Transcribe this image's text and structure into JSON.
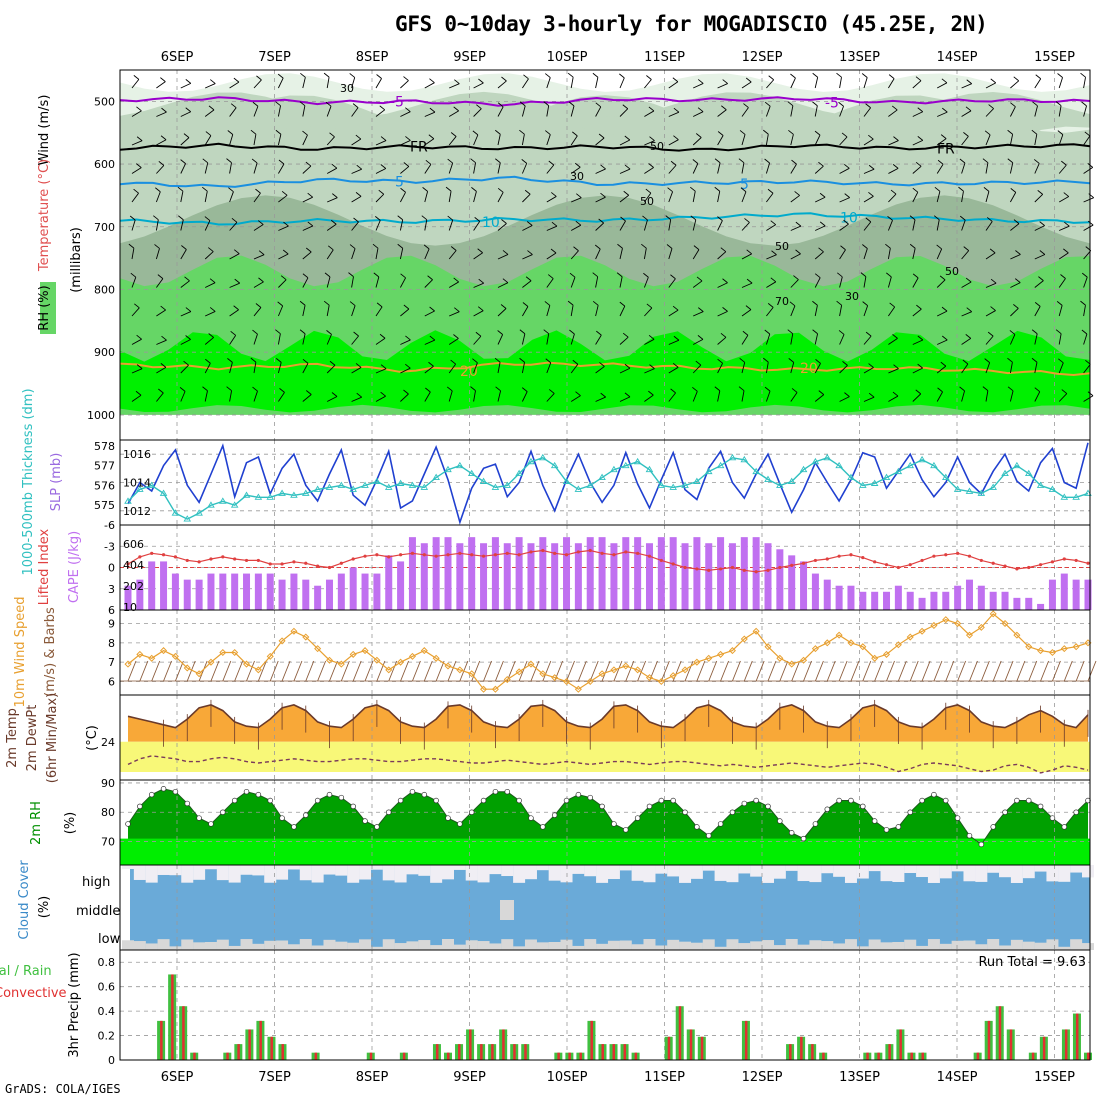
{
  "title": "GFS 0~10day 3-hourly for MOGADISCIO (45.25E, 2N)",
  "credit": "GrADS: COLA/IGES",
  "colors": {
    "rh_light": "#e6f2e6",
    "rh_mid": "#bfd6bf",
    "rh_dark": "#99b899",
    "rh_green": "#66d666",
    "rh_bright": "#00f000",
    "temp_purple": "#9900cc",
    "temp_cyan": "#00aacc",
    "temp_blue": "#1a8fe0",
    "temp_orange": "#e8a030",
    "slp": "#2040d0",
    "thickness": "#30c0c0",
    "cape": "#c070f0",
    "lifted": "#e04040",
    "wind10m": "#e8a030",
    "temp2m": "#f8a838",
    "dew2m": "#f8f878",
    "rh2m_dark": "#00a000",
    "rh2m_bright": "#00ee00",
    "cloud": "#6aaad8",
    "cloud_bg": "#f0eef4",
    "precip_total": "#40c040",
    "precip_conv": "#e03030"
  },
  "chart_data": [
    {
      "type": "heatmap",
      "name": "upper-air",
      "ylabel_parts": [
        "RH (%)",
        "Temperature (°C)",
        "Wind (m/s)"
      ],
      "yaxis_title": "(millibars)",
      "y_ticks": [
        500,
        600,
        700,
        800,
        900,
        1000
      ],
      "ylim": [
        450,
        1040
      ],
      "x_dates": [
        "6SEP",
        "7SEP",
        "8SEP",
        "9SEP",
        "10SEP",
        "11SEP",
        "12SEP",
        "13SEP",
        "14SEP",
        "15SEP"
      ],
      "contour_labels": [
        "-5",
        "FR",
        "5",
        "10",
        "20",
        "30",
        "50",
        "70"
      ],
      "isotherms": [
        {
          "label": "-5",
          "color": "purple",
          "values": [
            498,
            495,
            502,
            500,
            505,
            496,
            498,
            495,
            502,
            498,
            500
          ]
        },
        {
          "label": "FR",
          "color": "black",
          "values": [
            575,
            570,
            576,
            572,
            575,
            572,
            578,
            570,
            575,
            572,
            570
          ]
        },
        {
          "label": "5",
          "color": "blue",
          "values": [
            630,
            636,
            625,
            628,
            622,
            632,
            630,
            628,
            632,
            630,
            628
          ]
        },
        {
          "label": "10",
          "color": "cyan",
          "values": [
            690,
            695,
            690,
            692,
            688,
            690,
            685,
            680,
            685,
            690,
            692
          ]
        },
        {
          "label": "20",
          "color": "orange",
          "values": [
            920,
            925,
            920,
            930,
            918,
            920,
            925,
            928,
            925,
            930,
            935
          ]
        }
      ]
    },
    {
      "type": "line",
      "name": "slp-thickness",
      "ylabel_left": "1000-500mb Thickness (dm)",
      "ylabel_right": "SLP (mb)",
      "left_ticks": [
        575,
        576,
        577,
        578
      ],
      "right_ticks": [
        1012,
        1014,
        1016
      ],
      "ylim_slp": [
        1011,
        1017
      ],
      "slp": [
        1012.5,
        1014.0,
        1013.4,
        1015.2,
        1016.3,
        1013.8,
        1012.6,
        1014.6,
        1016.6,
        1013.0,
        1015.4,
        1015.8,
        1013.2,
        1015.0,
        1016.0,
        1013.8,
        1012.7,
        1014.6,
        1016.3,
        1013.1,
        1012.4,
        1014.2,
        1016.2,
        1012.2,
        1012.7,
        1014.6,
        1016.5,
        1014.2,
        1011.2,
        1013.6,
        1015.0,
        1015.3,
        1013.0,
        1014.0,
        1016.2,
        1013.8,
        1012.0,
        1014.2,
        1016.0,
        1014.0,
        1012.6,
        1013.8,
        1016.1,
        1013.9,
        1012.2,
        1014.2,
        1016.1,
        1013.5,
        1012.8,
        1015.0,
        1016.2,
        1014.0,
        1012.9,
        1014.6,
        1016.0,
        1013.9,
        1011.9,
        1013.5,
        1015.4,
        1014.0,
        1012.7,
        1014.2,
        1016.1,
        1015.8,
        1013.6,
        1014.8,
        1016.0,
        1014.2,
        1013.0,
        1014.0,
        1015.8,
        1014.0,
        1013.2,
        1014.8,
        1016.0,
        1014.1,
        1013.4,
        1015.4,
        1016.4,
        1014.0,
        1013.6,
        1016.8
      ],
      "thickness": [
        575.2,
        575.8,
        576.0,
        575.6,
        574.6,
        574.3,
        574.6,
        575.0,
        575.2,
        575.0,
        575.5,
        575.4,
        575.4,
        575.6,
        575.5,
        575.6,
        575.8,
        575.9,
        576.0,
        575.8,
        576.0,
        576.2,
        575.9,
        576.1,
        576.0,
        575.9,
        576.4,
        576.8,
        577.0,
        576.6,
        576.2,
        575.9,
        576.0,
        576.6,
        577.2,
        577.4,
        577.0,
        576.2,
        575.8,
        576.0,
        576.4,
        576.8,
        577.0,
        577.2,
        576.8,
        576.0,
        575.9,
        576.0,
        576.2,
        576.7,
        577.0,
        577.4,
        577.3,
        576.7,
        576.3,
        576.0,
        576.2,
        576.8,
        577.2,
        577.4,
        577.0,
        576.4,
        576.0,
        576.1,
        576.4,
        576.7,
        577.0,
        577.3,
        577.0,
        576.4,
        575.8,
        575.7,
        575.6,
        575.9,
        576.6,
        577.0,
        576.6,
        576.0,
        575.8,
        575.4,
        575.4,
        575.6
      ]
    },
    {
      "type": "bar",
      "name": "cape-lifted",
      "ylabel_left": "Lifted Index",
      "ylabel_right": "CAPE (J/kg)",
      "left_ticks": [
        "-6",
        "-3",
        "0",
        "3",
        "6"
      ],
      "right_ticks": [
        "10",
        "202",
        "404",
        "606"
      ],
      "cape": [
        4,
        5,
        8,
        8,
        6,
        5,
        5,
        6,
        6,
        6,
        6,
        6,
        6,
        5,
        6,
        5,
        4,
        5,
        6,
        7,
        6,
        6,
        9,
        8,
        12,
        11,
        12,
        12,
        11,
        12,
        11,
        12,
        11,
        12,
        11,
        12,
        11,
        12,
        11,
        12,
        12,
        11,
        12,
        12,
        11,
        12,
        12,
        11,
        12,
        11,
        12,
        11,
        12,
        12,
        11,
        10,
        9,
        8,
        6,
        5,
        4,
        4,
        3,
        3,
        3,
        4,
        3,
        2,
        3,
        3,
        4,
        5,
        4,
        3,
        3,
        2,
        2,
        1,
        5,
        6,
        5,
        5
      ],
      "lifted": [
        -0.5,
        -1.5,
        -2.0,
        -1.8,
        -1.5,
        -1.0,
        -0.8,
        -1.2,
        -1.5,
        -1.2,
        -1.0,
        -1.0,
        -0.5,
        -0.5,
        -0.8,
        -0.6,
        -0.2,
        0.0,
        -0.6,
        -1.2,
        -1.6,
        -1.8,
        -1.5,
        -1.8,
        -2.0,
        -1.8,
        -1.6,
        -1.8,
        -2.0,
        -1.8,
        -1.6,
        -1.8,
        -2.0,
        -1.8,
        -2.2,
        -2.4,
        -2.0,
        -1.8,
        -2.2,
        -2.4,
        -2.0,
        -1.8,
        -2.2,
        -2.0,
        -1.6,
        -1.0,
        -0.5,
        0.0,
        0.2,
        0.4,
        0.2,
        0.0,
        0.4,
        0.6,
        0.4,
        0.0,
        -0.3,
        -0.6,
        -1.0,
        -1.2,
        -1.6,
        -1.8,
        -1.4,
        -0.8,
        -0.4,
        0.0,
        -0.4,
        -1.0,
        -1.6,
        -1.8,
        -2.0,
        -1.6,
        -1.0,
        -0.6,
        -0.2,
        0.2,
        0.0,
        -0.4,
        -0.8,
        -1.2,
        -1.0,
        -0.6
      ]
    },
    {
      "type": "line",
      "name": "wind10m",
      "ylabel_left": "10m Wind Speed",
      "ylabel_right": "(m/s) & Barbs",
      "ticks": [
        6,
        7,
        8,
        9
      ],
      "ylim": [
        5.3,
        9.7
      ],
      "values": [
        6.9,
        7.4,
        7.2,
        7.6,
        7.3,
        6.7,
        6.4,
        7.0,
        7.5,
        7.5,
        6.9,
        6.6,
        7.3,
        8.1,
        8.6,
        8.3,
        7.7,
        7.1,
        6.9,
        7.4,
        7.6,
        7.1,
        6.6,
        7.0,
        7.3,
        7.6,
        7.2,
        6.8,
        6.6,
        6.4,
        5.6,
        5.6,
        6.1,
        6.5,
        6.9,
        6.4,
        6.2,
        6.0,
        5.6,
        6.0,
        6.4,
        6.6,
        6.8,
        6.6,
        6.2,
        6.0,
        6.3,
        6.6,
        7.0,
        7.2,
        7.4,
        7.6,
        8.2,
        8.6,
        7.8,
        7.2,
        6.9,
        7.1,
        7.7,
        8.0,
        8.4,
        8.0,
        7.8,
        7.2,
        7.4,
        7.9,
        8.3,
        8.6,
        8.9,
        9.2,
        9.0,
        8.4,
        8.8,
        9.5,
        9.0,
        8.4,
        7.8,
        7.6,
        7.5,
        7.7,
        7.8,
        8.0
      ]
    },
    {
      "type": "area",
      "name": "temp2m",
      "ylabel_left": "2m Temp 2m DewPt (6hr Min/Max)",
      "ylabel_right": "(°C)",
      "ticks": [
        24
      ],
      "ylim": [
        21.3,
        27.3
      ],
      "temp": [
        25.8,
        25.6,
        25.4,
        25.2,
        25.0,
        25.6,
        26.4,
        26.6,
        26.2,
        25.4,
        25.1,
        25.0,
        25.6,
        26.4,
        26.6,
        26.2,
        25.4,
        25.1,
        25.0,
        25.6,
        26.4,
        26.6,
        26.2,
        25.4,
        25.1,
        25.0,
        25.6,
        26.5,
        26.6,
        26.2,
        25.4,
        25.1,
        25.0,
        25.6,
        26.5,
        26.6,
        26.2,
        25.4,
        25.1,
        25.0,
        25.6,
        26.5,
        26.6,
        26.2,
        25.4,
        25.1,
        25.0,
        25.6,
        26.4,
        26.6,
        26.2,
        25.4,
        25.1,
        25.0,
        25.6,
        26.4,
        26.6,
        26.2,
        25.4,
        25.1,
        25.0,
        25.6,
        26.4,
        26.6,
        26.2,
        25.4,
        25.1,
        25.0,
        25.6,
        26.4,
        26.6,
        26.2,
        25.4,
        25.1,
        25.0,
        25.4,
        25.9,
        26.2,
        25.8,
        25.2,
        25.0,
        25.9
      ],
      "dew": [
        22.4,
        22.8,
        23.0,
        22.9,
        22.8,
        22.6,
        22.6,
        22.8,
        22.9,
        22.8,
        22.6,
        22.5,
        22.6,
        22.7,
        22.8,
        22.7,
        22.6,
        22.6,
        22.7,
        22.8,
        22.8,
        22.7,
        22.6,
        22.6,
        22.7,
        22.8,
        22.8,
        22.7,
        22.6,
        22.5,
        22.5,
        22.6,
        22.7,
        22.6,
        22.5,
        22.4,
        22.5,
        22.6,
        22.5,
        22.4,
        22.5,
        22.6,
        22.6,
        22.5,
        22.4,
        22.5,
        22.6,
        22.6,
        22.5,
        22.4,
        22.3,
        22.4,
        22.3,
        22.2,
        22.3,
        22.4,
        22.5,
        22.4,
        22.3,
        22.2,
        22.3,
        22.4,
        22.5,
        22.4,
        22.2,
        21.9,
        22.1,
        22.4,
        22.5,
        22.4,
        22.3,
        22.1,
        21.9,
        22.0,
        22.3,
        22.4,
        22.2,
        21.8,
        22.0,
        22.3,
        22.2,
        22.0
      ]
    },
    {
      "type": "area",
      "name": "rh2m",
      "ylabel_left": "2m RH",
      "ylabel_right": "(%)",
      "ticks": [
        70,
        80,
        90
      ],
      "ylim": [
        62,
        91
      ],
      "values": [
        76,
        82,
        86,
        88,
        87,
        83,
        78,
        76,
        80,
        84,
        87,
        86,
        84,
        78,
        75,
        79,
        84,
        86,
        85,
        82,
        77,
        75,
        80,
        84,
        87,
        86,
        84,
        78,
        76,
        80,
        84,
        87,
        87,
        84,
        78,
        75,
        79,
        84,
        86,
        85,
        82,
        76,
        74,
        78,
        82,
        84,
        84,
        80,
        75,
        72,
        76,
        80,
        83,
        84,
        82,
        77,
        73,
        71,
        76,
        81,
        84,
        84,
        82,
        77,
        74,
        75,
        80,
        84,
        86,
        84,
        78,
        72,
        69,
        75,
        80,
        84,
        84,
        82,
        78,
        75,
        80,
        84
      ]
    },
    {
      "type": "area",
      "name": "cloud-cover",
      "ylabel_left": "Cloud Cover",
      "ylabel_right": "(%)",
      "level_labels": [
        "high",
        "middle",
        "low"
      ]
    },
    {
      "type": "bar",
      "name": "precip",
      "ylabel_left": "Total / Rain Convective",
      "ylabel_right": "3hr Precip (mm)",
      "annotation": "Run Total = 9.63",
      "ticks": [
        0,
        0.2,
        0.4,
        0.6,
        0.8
      ],
      "ylim": [
        0,
        0.9
      ],
      "values": [
        0,
        0,
        0,
        0.32,
        0.7,
        0.44,
        0.06,
        0,
        0,
        0.06,
        0.13,
        0.25,
        0.32,
        0.19,
        0.13,
        0,
        0,
        0.06,
        0,
        0,
        0,
        0,
        0.06,
        0,
        0,
        0.06,
        0,
        0,
        0.13,
        0.06,
        0.13,
        0.25,
        0.13,
        0.13,
        0.25,
        0.13,
        0.13,
        0,
        0,
        0.06,
        0.06,
        0.06,
        0.32,
        0.13,
        0.13,
        0.13,
        0.06,
        0,
        0,
        0.19,
        0.44,
        0.25,
        0.19,
        0,
        0,
        0,
        0.32,
        0,
        0,
        0,
        0.13,
        0.19,
        0.13,
        0.06,
        0,
        0,
        0,
        0.06,
        0.06,
        0.13,
        0.25,
        0.06,
        0.06,
        0,
        0,
        0,
        0,
        0.06,
        0.32,
        0.44,
        0.25,
        0,
        0.06,
        0.19,
        0,
        0.25,
        0.38,
        0.06
      ]
    }
  ]
}
